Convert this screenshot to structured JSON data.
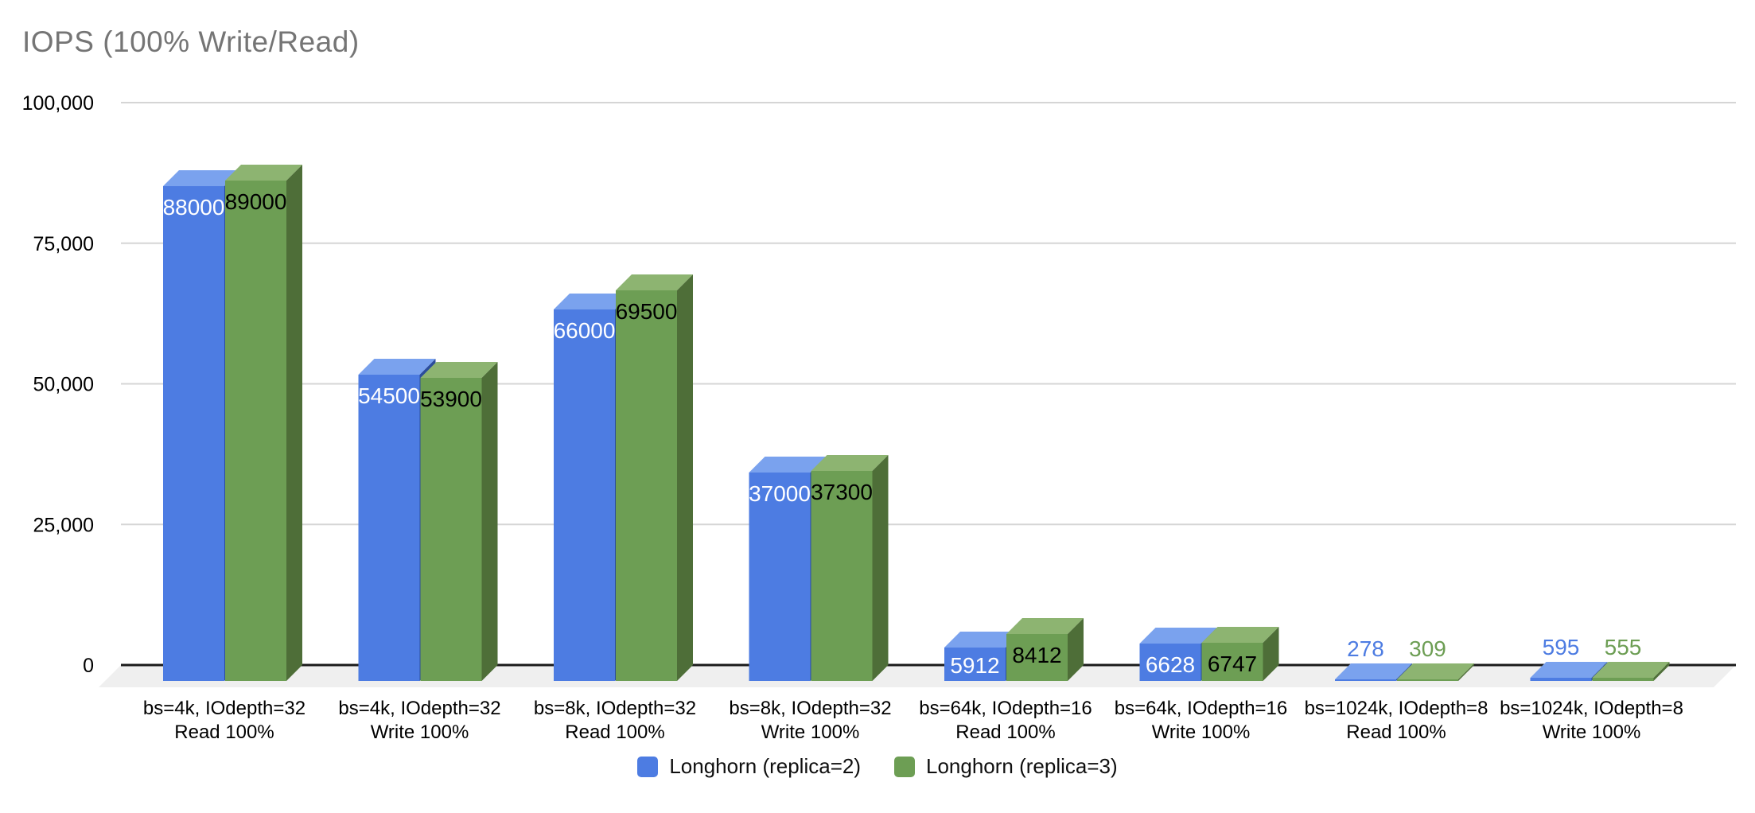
{
  "chart_data": {
    "type": "bar",
    "style": "3d-column",
    "title": "IOPS (100% Write/Read)",
    "categories": [
      [
        "bs=4k, IOdepth=32",
        "Read 100%"
      ],
      [
        "bs=4k, IOdepth=32",
        "Write 100%"
      ],
      [
        "bs=8k, IOdepth=32",
        "Read 100%"
      ],
      [
        "bs=8k, IOdepth=32",
        "Write 100%"
      ],
      [
        "bs=64k, IOdepth=16",
        "Read 100%"
      ],
      [
        "bs=64k, IOdepth=16",
        "Write 100%"
      ],
      [
        "bs=1024k, IOdepth=8",
        "Read 100%"
      ],
      [
        "bs=1024k, IOdepth=8",
        "Write 100%"
      ]
    ],
    "series": [
      {
        "name": "Longhorn (replica=2)",
        "values": [
          88000,
          54500,
          66000,
          37000,
          5912,
          6628,
          278,
          595
        ],
        "color_front": "#4d7ce2",
        "color_top": "#7aa2ee",
        "color_side": "#2b4d9c",
        "label_color_on_bar": "#ffffff"
      },
      {
        "name": "Longhorn (replica=3)",
        "values": [
          89000,
          53900,
          69500,
          37300,
          8412,
          6747,
          309,
          555
        ],
        "color_front": "#6d9e54",
        "color_top": "#8db471",
        "color_side": "#4e6e38",
        "label_color_on_bar": "#000000"
      }
    ],
    "y_axis": {
      "min": 0,
      "max": 100000,
      "ticks": [
        {
          "value": 0,
          "label": "0"
        },
        {
          "value": 25000,
          "label": "25,000"
        },
        {
          "value": 50000,
          "label": "50,000"
        },
        {
          "value": 75000,
          "label": "75,000"
        },
        {
          "value": 100000,
          "label": "100,000"
        }
      ]
    },
    "grid": true,
    "legend_position": "bottom",
    "colors": {
      "title_text": "#757575",
      "axis_text": "#000000",
      "category_text": "#000000",
      "gridline": "#d5d5d5",
      "zero_axis": "#1a1a1a",
      "floor": "#efefef",
      "background": "#ffffff"
    }
  }
}
